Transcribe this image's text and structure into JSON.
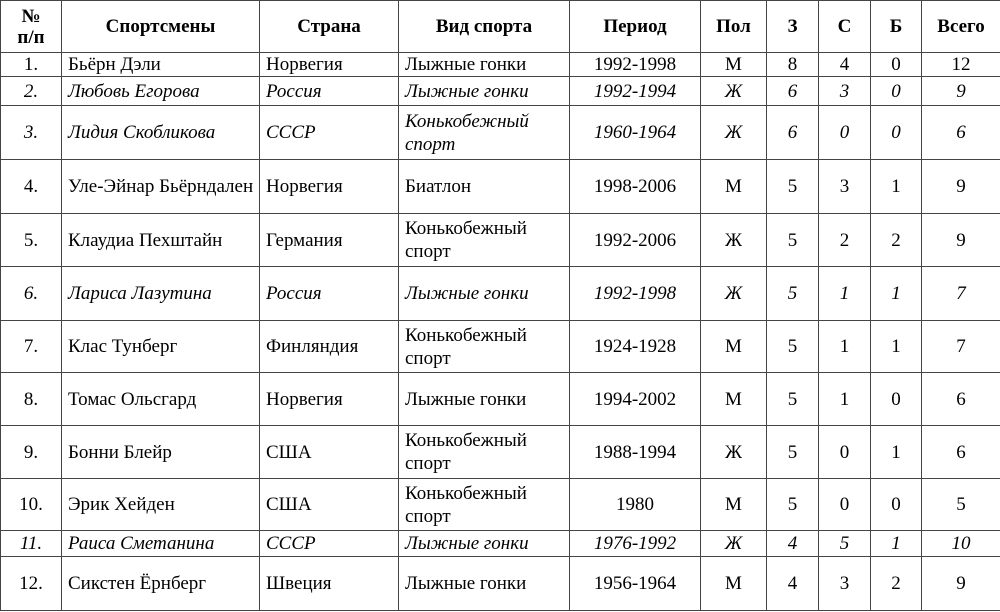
{
  "headers": [
    "№ п/п",
    "Спортсмены",
    "Страна",
    "Вид спорта",
    "Период",
    "Пол",
    "З",
    "С",
    "Б",
    "Всего"
  ],
  "rows": [
    {
      "n": "1.",
      "name": "Бьёрн Дэли",
      "country": "Норвегия",
      "sport": "Лыжные гонки",
      "period": "1992-1998",
      "sex": "М",
      "g": "8",
      "s": "4",
      "b": "0",
      "total": "12",
      "italic": false
    },
    {
      "n": "2.",
      "name": "Любовь Егорова",
      "country": "Россия",
      "sport": "Лыжные гонки",
      "period": "1992-1994",
      "sex": "Ж",
      "g": "6",
      "s": "3",
      "b": "0",
      "total": "9",
      "italic": true
    },
    {
      "n": "3.",
      "name": "Лидия Скобликова",
      "country": "СССР",
      "sport": "Конькобежный спорт",
      "period": "1960-1964",
      "sex": "Ж",
      "g": "6",
      "s": "0",
      "b": "0",
      "total": "6",
      "italic": true
    },
    {
      "n": "4.",
      "name": "Уле-Эйнар Бьёрндален",
      "country": "Норвегия",
      "sport": "Биатлон",
      "period": "1998-2006",
      "sex": "М",
      "g": "5",
      "s": "3",
      "b": "1",
      "total": "9",
      "italic": false
    },
    {
      "n": "5.",
      "name": "Клаудиа Пехштайн",
      "country": "Германия",
      "sport": "Конькобежный спорт",
      "period": "1992-2006",
      "sex": "Ж",
      "g": "5",
      "s": "2",
      "b": "2",
      "total": "9",
      "italic": false
    },
    {
      "n": "6.",
      "name": "Лариса Лазутина",
      "country": "Россия",
      "sport": "Лыжные гонки",
      "period": "1992-1998",
      "sex": "Ж",
      "g": "5",
      "s": "1",
      "b": "1",
      "total": "7",
      "italic": true
    },
    {
      "n": "7.",
      "name": "Клас Тунберг",
      "country": "Финляндия",
      "sport": "Конькобежный спорт",
      "period": "1924-1928",
      "sex": "М",
      "g": "5",
      "s": "1",
      "b": "1",
      "total": "7",
      "italic": false
    },
    {
      "n": "8.",
      "name": "Томас Ольсгард",
      "country": "Норвегия",
      "sport": "Лыжные гонки",
      "period": "1994-2002",
      "sex": "М",
      "g": "5",
      "s": "1",
      "b": "0",
      "total": "6",
      "italic": false
    },
    {
      "n": "9.",
      "name": "Бонни Блейр",
      "country": "США",
      "sport": "Конькобежный спорт",
      "period": "1988-1994",
      "sex": "Ж",
      "g": "5",
      "s": "0",
      "b": "1",
      "total": "6",
      "italic": false
    },
    {
      "n": "10.",
      "name": "Эрик Хейден",
      "country": "США",
      "sport": "Конькобежный спорт",
      "period": "1980",
      "sex": "М",
      "g": "5",
      "s": "0",
      "b": "0",
      "total": "5",
      "italic": false
    },
    {
      "n": "11.",
      "name": "Раиса Сметанина",
      "country": "СССР",
      "sport": "Лыжные гонки",
      "period": "1976-1992",
      "sex": "Ж",
      "g": "4",
      "s": "5",
      "b": "1",
      "total": "10",
      "italic": true
    },
    {
      "n": "12.",
      "name": "Сикстен Ёрнберг",
      "country": "Швеция",
      "sport": "Лыжные гонки",
      "period": "1956-1964",
      "sex": "М",
      "g": "4",
      "s": "3",
      "b": "2",
      "total": "9",
      "italic": false
    }
  ]
}
